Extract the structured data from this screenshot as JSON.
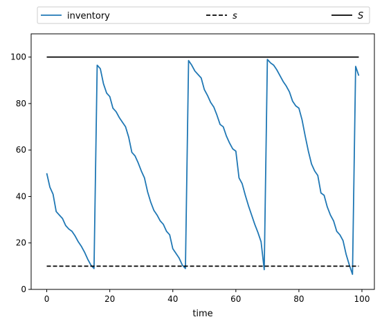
{
  "chart_data": {
    "type": "line",
    "title": "",
    "xlabel": "time",
    "ylabel": "",
    "xlim": [
      -4.95,
      103.95
    ],
    "ylim": [
      0,
      110
    ],
    "x_ticks": [
      0,
      20,
      40,
      60,
      80,
      100
    ],
    "y_ticks": [
      0,
      20,
      40,
      60,
      80,
      100
    ],
    "grid": false,
    "legend_position": "above plot, horizontal",
    "series": [
      {
        "name": "inventory",
        "style": "solid",
        "color": "#1f77b4",
        "x": [
          0,
          1,
          2,
          3,
          4,
          5,
          6,
          7,
          8,
          9,
          10,
          11,
          12,
          13,
          14,
          15,
          16,
          17,
          18,
          19,
          20,
          21,
          22,
          23,
          24,
          25,
          26,
          27,
          28,
          29,
          30,
          31,
          32,
          33,
          34,
          35,
          36,
          37,
          38,
          39,
          40,
          41,
          42,
          43,
          44,
          45,
          46,
          47,
          48,
          49,
          50,
          51,
          52,
          53,
          54,
          55,
          56,
          57,
          58,
          59,
          60,
          61,
          62,
          63,
          64,
          65,
          66,
          67,
          68,
          69,
          70,
          71,
          72,
          73,
          74,
          75,
          76,
          77,
          78,
          79,
          80,
          81,
          82,
          83,
          84,
          85,
          86,
          87,
          88,
          89,
          90,
          91,
          92,
          93,
          94,
          95,
          96,
          97,
          98,
          99
        ],
        "y": [
          50,
          44,
          41,
          33.5,
          32,
          30.5,
          27.5,
          26,
          25,
          23,
          20.5,
          18.5,
          16,
          13,
          10.5,
          9,
          96.5,
          95,
          88.5,
          84.5,
          83,
          78,
          76.5,
          74,
          72,
          70,
          65.5,
          59,
          57.5,
          54.5,
          51,
          48,
          42,
          37.5,
          34,
          32,
          29.5,
          28,
          25,
          23.5,
          17.5,
          15.5,
          13.5,
          10.5,
          9,
          98.5,
          96.5,
          94,
          92.5,
          91,
          86,
          83.5,
          80.5,
          78.5,
          75,
          71,
          70,
          66,
          63,
          60.5,
          59.5,
          48,
          45.5,
          40.5,
          36,
          32,
          28,
          24.5,
          20.5,
          8.5,
          99,
          97.5,
          96.5,
          94.5,
          92,
          89.5,
          87.5,
          85,
          81,
          79,
          78,
          73,
          66,
          59.5,
          54,
          51,
          49,
          41.5,
          40.5,
          35.5,
          32,
          29.5,
          25,
          23.5,
          21,
          15,
          10.5,
          6.5,
          96,
          92
        ]
      },
      {
        "name": "s",
        "style": "dashed",
        "color": "#000000",
        "x": [
          0,
          99
        ],
        "y": [
          10,
          10
        ]
      },
      {
        "name": "S",
        "style": "solid",
        "color": "#000000",
        "x": [
          0,
          99
        ],
        "y": [
          100,
          100
        ]
      }
    ]
  }
}
